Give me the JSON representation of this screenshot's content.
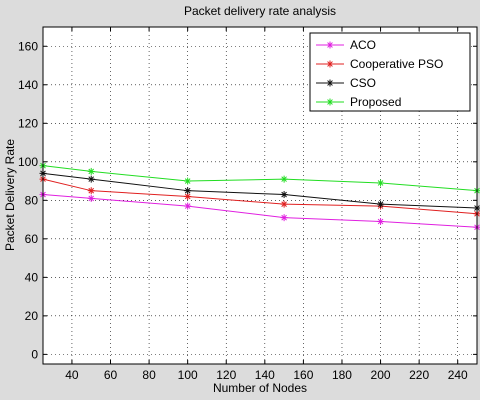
{
  "chart_data": {
    "type": "line",
    "title": "Packet delivery rate analysis",
    "xlabel": "Number of Nodes",
    "ylabel": "Packet Delivery Rate",
    "xlim": [
      25,
      250
    ],
    "ylim": [
      -5,
      170
    ],
    "xticks": [
      40,
      60,
      80,
      100,
      120,
      140,
      160,
      180,
      200,
      220,
      240
    ],
    "yticks": [
      0,
      20,
      40,
      60,
      80,
      100,
      120,
      140,
      160
    ],
    "grid": true,
    "legend_position": "top-right",
    "x": [
      25,
      50,
      100,
      150,
      200,
      250
    ],
    "series": [
      {
        "name": "ACO",
        "color": "#e020e0",
        "values": [
          83,
          81,
          77,
          71,
          69,
          66
        ]
      },
      {
        "name": "Cooperative PSO",
        "color": "#e02020",
        "values": [
          91,
          85,
          82,
          78,
          77,
          73
        ]
      },
      {
        "name": "CSO",
        "color": "#101010",
        "values": [
          94,
          91,
          85,
          83,
          78,
          76
        ]
      },
      {
        "name": "Proposed",
        "color": "#22dd22",
        "values": [
          98,
          95,
          90,
          91,
          89,
          85
        ]
      }
    ]
  }
}
